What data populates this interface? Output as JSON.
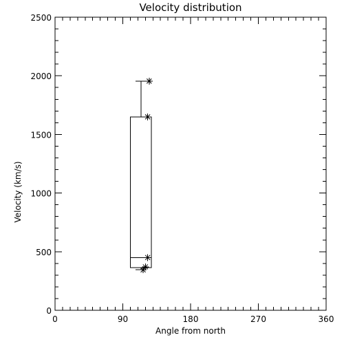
{
  "chart_data": {
    "type": "box",
    "title": "Velocity distribution",
    "xlabel": "Angle from north",
    "ylabel": "Velocity (km/s)",
    "xlim": [
      0,
      360
    ],
    "ylim": [
      0,
      2500
    ],
    "xticks": [
      0,
      90,
      180,
      270,
      360
    ],
    "xtick_labels": [
      "0",
      "90",
      "180",
      "270",
      "360"
    ],
    "yticks": [
      0,
      500,
      1000,
      1500,
      2000,
      2500
    ],
    "ytick_labels": [
      "0",
      "500",
      "1000",
      "1500",
      "2000",
      "2500"
    ],
    "x_minor_step": 10,
    "y_minor_step": 100,
    "grid": false,
    "box": {
      "x_from": 100,
      "x_to": 128,
      "q1": 365,
      "median": 450,
      "q3": 1650,
      "whisker_high": 1955,
      "whisker_low": 345
    },
    "points": [
      {
        "x": 125,
        "y": 1955
      },
      {
        "x": 123,
        "y": 1650
      },
      {
        "x": 123,
        "y": 450
      },
      {
        "x": 120,
        "y": 370
      },
      {
        "x": 117,
        "y": 345
      }
    ],
    "colors": {
      "line": "#000000",
      "background": "#ffffff"
    }
  }
}
